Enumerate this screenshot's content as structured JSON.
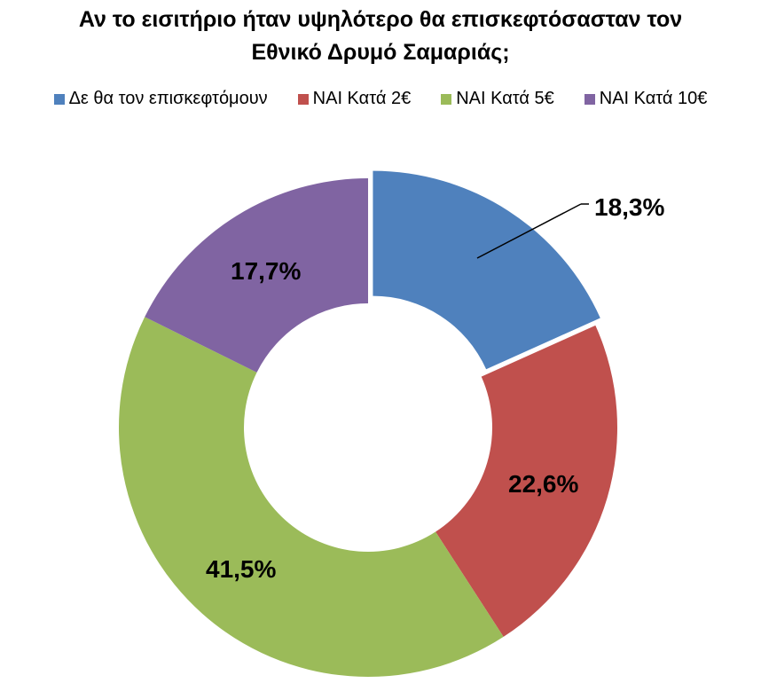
{
  "chart_data": {
    "type": "doughnut",
    "title": "Αν το εισιτήριο ήταν υψηλότερο θα επισκεφτόσασταν τον Εθνικό Δρυμό Σαμαριάς;",
    "title_lines": [
      "Αν το εισιτήριο ήταν υψηλότερο θα επισκεφτόσασταν τον",
      "Εθνικό Δρυμό Σαμαριάς;"
    ],
    "categories": [
      "Δε θα τον επισκεφτόμουν",
      "ΝΑΙ Κατά 2€",
      "ΝΑΙ Κατά 5€",
      "ΝΑΙ Κατά 10€"
    ],
    "values": [
      18.3,
      22.6,
      41.5,
      17.7
    ],
    "labels": [
      "18,3%",
      "22,6%",
      "41,5%",
      "17,7%"
    ],
    "colors": [
      "#4F81BD",
      "#C0504D",
      "#9BBB59",
      "#8064A2"
    ],
    "exploded": [
      true,
      false,
      false,
      false
    ],
    "legend_position": "top",
    "unit": "%"
  },
  "legend": {
    "items": [
      {
        "label": "Δε θα τον επισκεφτόμουν",
        "color": "#4F81BD"
      },
      {
        "label": "ΝΑΙ Κατά 2€",
        "color": "#C0504D"
      },
      {
        "label": "ΝΑΙ Κατά 5€",
        "color": "#9BBB59"
      },
      {
        "label": "ΝΑΙ Κατά 10€",
        "color": "#8064A2"
      }
    ]
  }
}
